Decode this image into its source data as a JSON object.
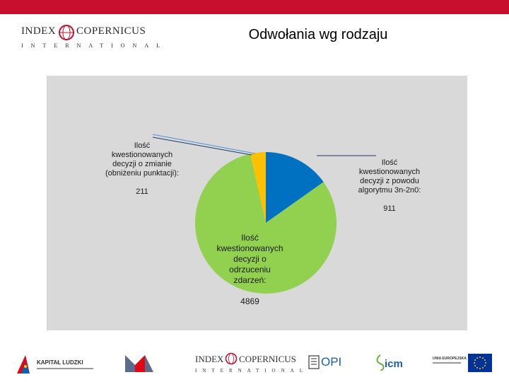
{
  "header": {
    "logo_left": "INDEX",
    "logo_right": "COPERNICUS",
    "logo_sub": "INTERNATIONAL",
    "title": "Odwołania wg rodzaju"
  },
  "chart_data": {
    "type": "pie",
    "slices": [
      {
        "label": "Ilość kwestionowanych decyzji z powodu algorytmu 3n-2n0:",
        "value": 911,
        "color": "#0070c0"
      },
      {
        "label": "Ilość kwestionowanych decyzji o odrzuceniu zdarzeń:",
        "value": 4869,
        "color": "#92d050"
      },
      {
        "label": "Ilość kwestionowanych decyzji o zmianie (obniżeniu punktacji):",
        "value": 211,
        "color": "#ffc000"
      }
    ],
    "value_labels": [
      "911",
      "4869",
      "211"
    ]
  },
  "labels": {
    "blue": "Ilość\nkwestionowanych\ndecyzji z powodu\nalgorytmu 3n-2n0:",
    "blue_val": "911",
    "green": "Ilość\nkwestionowanych\ndecyzji o\nodrzuceniu\nzdarzeń:",
    "green_val": "4869",
    "yellow": "Ilość\nkwestionowanych\ndecyzji o zmianie\n(obniżeniu punktacji):",
    "yellow_val": "211"
  },
  "footer": {
    "kapital": "KAPITAŁ LUDZKI",
    "index": "INDEX",
    "copernicus": "COPERNICUS",
    "international": "INTERNATIONAL",
    "opi": "OPI",
    "icm": "icm",
    "ue": "UNIA EUROPEJSKA"
  },
  "colors": {
    "top_bar": "#c8102e",
    "chart_bg": "#d9d9d9"
  }
}
